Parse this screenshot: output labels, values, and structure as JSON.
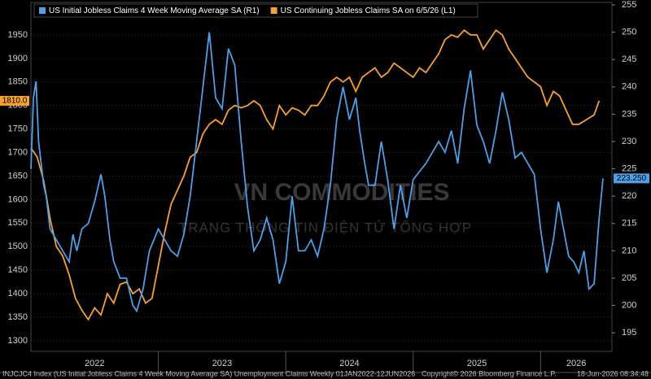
{
  "chart_data": {
    "type": "line",
    "legend": [
      {
        "name": "US Initial Jobless Claims 4 Week Moving Average SA  (R1)",
        "color": "#4f9ee8"
      },
      {
        "name": "US Continuing Jobless Claims SA  on 6/5/26 (L1)",
        "color": "#f7a035"
      }
    ],
    "watermark": [
      "VN COMMODITIES",
      "TRANG THÔNG TIN ĐIỆN TỬ TỔNG HỢP"
    ],
    "footer": [
      "INJCJC4 Index (US Initial Jobless Claims 4 Week Moving Average SA) Unemployment Claims Weekly 01JAN2022-12JUN2026",
      "Copyright© 2026 Bloomberg Finance L.P.",
      "18-Jun-2026 08:34:48"
    ],
    "xlim": [
      2022,
      2026.56
    ],
    "xticks": [
      {
        "value": 2022.5,
        "label": "2022"
      },
      {
        "value": 2023.5,
        "label": "2023"
      },
      {
        "value": 2024.5,
        "label": "2024"
      },
      {
        "value": 2025.5,
        "label": "2025"
      },
      {
        "value": 2026.28,
        "label": "2026"
      }
    ],
    "ylim": [
      1277.5,
      2019
    ],
    "yticks": [
      1300,
      1350,
      1400,
      1450,
      1500,
      1550,
      1600,
      1650,
      1700,
      1750,
      1800,
      1850,
      1900,
      1950
    ],
    "y2lim": [
      191.6,
      255.45
    ],
    "y2ticks": [
      195,
      200,
      205,
      210,
      215,
      220,
      225,
      230,
      235,
      240,
      245,
      250,
      255
    ],
    "grid": true,
    "series": [
      {
        "name": "US Continuing Jobless Claims SA",
        "color": "#f7a035",
        "axis": "y",
        "last_value_label": "1810.0",
        "x": [
          2022.0,
          2022.05,
          2022.1,
          2022.15,
          2022.2,
          2022.25,
          2022.3,
          2022.35,
          2022.4,
          2022.45,
          2022.5,
          2022.55,
          2022.6,
          2022.65,
          2022.7,
          2022.75,
          2022.8,
          2022.85,
          2022.9,
          2022.95,
          2023.0,
          2023.05,
          2023.1,
          2023.15,
          2023.2,
          2023.25,
          2023.3,
          2023.35,
          2023.4,
          2023.45,
          2023.5,
          2023.55,
          2023.6,
          2023.65,
          2023.7,
          2023.75,
          2023.8,
          2023.85,
          2023.9,
          2023.95,
          2024.0,
          2024.05,
          2024.1,
          2024.15,
          2024.2,
          2024.25,
          2024.3,
          2024.35,
          2024.4,
          2024.45,
          2024.5,
          2024.55,
          2024.6,
          2024.65,
          2024.7,
          2024.75,
          2024.8,
          2024.85,
          2024.9,
          2024.95,
          2025.0,
          2025.05,
          2025.1,
          2025.15,
          2025.2,
          2025.25,
          2025.3,
          2025.35,
          2025.4,
          2025.45,
          2025.5,
          2025.55,
          2025.6,
          2025.65,
          2025.7,
          2025.75,
          2025.8,
          2025.85,
          2025.9,
          2025.95,
          2026.0,
          2026.05,
          2026.1,
          2026.15,
          2026.2,
          2026.25,
          2026.3,
          2026.36,
          2026.42,
          2026.46
        ],
        "values": [
          1710,
          1690,
          1640,
          1560,
          1500,
          1480,
          1440,
          1390,
          1365,
          1345,
          1370,
          1355,
          1400,
          1380,
          1420,
          1425,
          1400,
          1410,
          1380,
          1390,
          1460,
          1530,
          1590,
          1620,
          1650,
          1690,
          1700,
          1740,
          1760,
          1770,
          1760,
          1790,
          1800,
          1795,
          1800,
          1810,
          1800,
          1770,
          1750,
          1800,
          1780,
          1795,
          1790,
          1780,
          1800,
          1800,
          1820,
          1850,
          1860,
          1850,
          1860,
          1830,
          1860,
          1870,
          1880,
          1860,
          1870,
          1890,
          1880,
          1870,
          1860,
          1880,
          1870,
          1890,
          1910,
          1940,
          1950,
          1945,
          1960,
          1950,
          1950,
          1920,
          1940,
          1960,
          1950,
          1920,
          1900,
          1880,
          1860,
          1850,
          1840,
          1800,
          1830,
          1820,
          1790,
          1760,
          1760,
          1770,
          1780,
          1810
        ]
      },
      {
        "name": "US Initial Jobless Claims 4 Week Moving Average SA",
        "color": "#4f9ee8",
        "axis": "y2",
        "last_value_label": "223.250",
        "x": [
          2022.0,
          2022.02,
          2022.04,
          2022.06,
          2022.1,
          2022.12,
          2022.15,
          2022.2,
          2022.25,
          2022.3,
          2022.33,
          2022.36,
          2022.4,
          2022.45,
          2022.5,
          2022.55,
          2022.58,
          2022.62,
          2022.65,
          2022.7,
          2022.75,
          2022.8,
          2022.83,
          2022.88,
          2022.93,
          2023.0,
          2023.05,
          2023.1,
          2023.15,
          2023.2,
          2023.25,
          2023.3,
          2023.4,
          2023.45,
          2023.5,
          2023.55,
          2023.6,
          2023.65,
          2023.7,
          2023.75,
          2023.8,
          2023.85,
          2023.9,
          2023.95,
          2024.0,
          2024.05,
          2024.1,
          2024.15,
          2024.2,
          2024.25,
          2024.3,
          2024.35,
          2024.4,
          2024.45,
          2024.5,
          2024.55,
          2024.58,
          2024.62,
          2024.65,
          2024.7,
          2024.75,
          2024.8,
          2024.85,
          2024.9,
          2024.95,
          2025.0,
          2025.1,
          2025.2,
          2025.25,
          2025.3,
          2025.35,
          2025.4,
          2025.45,
          2025.5,
          2025.55,
          2025.6,
          2025.65,
          2025.7,
          2025.75,
          2025.8,
          2025.85,
          2025.9,
          2025.95,
          2026.0,
          2026.05,
          2026.1,
          2026.14,
          2026.18,
          2026.22,
          2026.26,
          2026.3,
          2026.34,
          2026.38,
          2026.42,
          2026.46,
          2026.49
        ],
        "values": [
          225,
          238,
          241,
          230,
          222,
          220,
          214,
          212,
          210,
          208,
          213,
          210,
          214,
          215,
          219,
          224,
          220,
          212,
          208,
          205,
          205,
          200,
          199,
          203,
          210,
          214,
          212,
          210,
          209,
          213,
          220,
          230,
          250,
          238,
          236,
          247,
          244,
          230,
          218,
          210,
          212,
          216,
          212,
          204,
          208,
          220,
          210,
          210,
          212,
          209,
          214,
          222,
          234,
          240,
          234,
          238,
          232,
          226,
          222,
          222,
          230,
          223,
          214,
          222,
          216,
          223,
          226,
          230,
          228,
          232,
          226,
          236,
          243,
          233,
          230,
          226,
          232,
          239,
          234,
          227,
          228,
          226,
          224,
          214,
          206,
          212,
          219,
          214,
          209,
          208,
          206,
          210,
          203,
          204,
          216,
          223.25
        ]
      }
    ]
  }
}
